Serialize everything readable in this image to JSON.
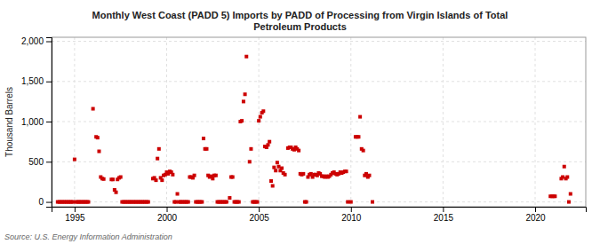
{
  "chart_data": {
    "type": "scatter",
    "title": "Monthly West Coast (PADD 5) Imports by PADD of Processing from Virgin Islands of Total\nPetroleum Products",
    "ylabel": "Thousand Barrels",
    "source": "Source: U.S. Energy Information Administration",
    "color": "#cc0000",
    "marker": "square",
    "grid": true,
    "xlim": [
      1993.75,
      2022.75
    ],
    "xticks": [
      1995,
      2000,
      2005,
      2010,
      2015,
      2020
    ],
    "ylim": [
      -60,
      2050
    ],
    "yticks": [
      0,
      500,
      {
        "value": 1000,
        "label": "1,000"
      },
      {
        "value": 1500,
        "label": "1,500"
      },
      {
        "value": 2000,
        "label": "2,000"
      }
    ],
    "x": [
      1994.08,
      1994.17,
      1994.25,
      1994.33,
      1994.42,
      1994.5,
      1994.58,
      1994.67,
      1994.75,
      1994.83,
      1994.92,
      1995.0,
      1995.08,
      1995.17,
      1995.25,
      1995.33,
      1995.42,
      1995.5,
      1995.58,
      1995.67,
      1995.75,
      1996.0,
      1996.17,
      1996.25,
      1996.33,
      1996.42,
      1996.5,
      1996.58,
      1997.0,
      1997.08,
      1997.17,
      1997.25,
      1997.33,
      1997.42,
      1997.5,
      1997.58,
      1997.67,
      1997.75,
      1997.83,
      1997.92,
      1998.0,
      1998.08,
      1998.17,
      1998.25,
      1998.33,
      1998.42,
      1998.5,
      1998.58,
      1998.67,
      1998.75,
      1998.83,
      1998.92,
      1999.0,
      1999.25,
      1999.33,
      1999.42,
      1999.5,
      1999.58,
      1999.67,
      1999.75,
      1999.83,
      1999.92,
      2000.0,
      2000.08,
      2000.17,
      2000.25,
      2000.33,
      2000.42,
      2000.5,
      2000.58,
      2000.67,
      2000.75,
      2000.83,
      2000.92,
      2001.0,
      2001.08,
      2001.17,
      2001.25,
      2001.33,
      2001.42,
      2001.5,
      2001.58,
      2001.67,
      2001.75,
      2001.83,
      2001.92,
      2002.0,
      2002.08,
      2002.17,
      2002.25,
      2002.33,
      2002.42,
      2002.5,
      2002.58,
      2002.67,
      2002.75,
      2002.83,
      2002.92,
      2003.0,
      2003.08,
      2003.17,
      2003.25,
      2003.42,
      2003.5,
      2003.58,
      2003.67,
      2003.75,
      2003.83,
      2003.92,
      2004.0,
      2004.08,
      2004.17,
      2004.25,
      2004.33,
      2004.5,
      2004.58,
      2004.67,
      2004.75,
      2004.83,
      2004.92,
      2005.0,
      2005.08,
      2005.17,
      2005.25,
      2005.33,
      2005.42,
      2005.5,
      2005.58,
      2005.67,
      2005.75,
      2005.83,
      2005.92,
      2006.0,
      2006.08,
      2006.17,
      2006.25,
      2006.33,
      2006.42,
      2006.58,
      2006.67,
      2006.75,
      2006.83,
      2006.92,
      2007.0,
      2007.08,
      2007.17,
      2007.25,
      2007.33,
      2007.42,
      2007.5,
      2007.58,
      2007.67,
      2007.75,
      2007.83,
      2007.92,
      2008.0,
      2008.08,
      2008.17,
      2008.25,
      2008.33,
      2008.42,
      2008.5,
      2008.58,
      2008.67,
      2008.75,
      2008.83,
      2008.92,
      2009.0,
      2009.08,
      2009.17,
      2009.25,
      2009.33,
      2009.42,
      2009.5,
      2009.58,
      2009.67,
      2009.75,
      2009.83,
      2010.0,
      2010.25,
      2010.33,
      2010.42,
      2010.5,
      2010.58,
      2010.67,
      2010.75,
      2010.83,
      2010.92,
      2011.0,
      2011.17,
      2020.83,
      2020.92,
      2021.0,
      2021.08,
      2021.42,
      2021.5,
      2021.58,
      2021.67,
      2021.75,
      2021.83,
      2021.92
    ],
    "values": [
      0,
      0,
      0,
      0,
      0,
      0,
      0,
      0,
      0,
      0,
      0,
      530,
      0,
      0,
      0,
      0,
      0,
      0,
      0,
      0,
      0,
      1160,
      810,
      800,
      630,
      310,
      290,
      285,
      280,
      280,
      150,
      120,
      280,
      300,
      310,
      0,
      0,
      0,
      0,
      0,
      0,
      0,
      0,
      0,
      0,
      0,
      0,
      0,
      0,
      0,
      0,
      0,
      0,
      290,
      300,
      270,
      540,
      660,
      300,
      270,
      330,
      340,
      370,
      350,
      380,
      370,
      340,
      0,
      0,
      100,
      0,
      0,
      0,
      0,
      0,
      0,
      0,
      310,
      310,
      300,
      330,
      0,
      0,
      0,
      0,
      0,
      790,
      660,
      660,
      330,
      310,
      320,
      290,
      330,
      330,
      0,
      0,
      0,
      0,
      0,
      0,
      0,
      50,
      310,
      310,
      0,
      0,
      0,
      0,
      1000,
      1010,
      1250,
      1340,
      1810,
      500,
      660,
      0,
      0,
      0,
      0,
      1010,
      1060,
      1110,
      1130,
      690,
      680,
      710,
      750,
      260,
      200,
      430,
      390,
      490,
      440,
      390,
      420,
      360,
      340,
      670,
      680,
      680,
      660,
      650,
      680,
      660,
      640,
      350,
      340,
      350,
      0,
      0,
      310,
      340,
      350,
      310,
      340,
      340,
      330,
      360,
      350,
      320,
      320,
      310,
      320,
      310,
      320,
      340,
      360,
      370,
      350,
      340,
      350,
      370,
      360,
      370,
      380,
      380,
      0,
      0,
      810,
      810,
      810,
      1060,
      660,
      640,
      330,
      350,
      310,
      330,
      0,
      70,
      70,
      70,
      70,
      290,
      310,
      440,
      290,
      310,
      0,
      100
    ]
  }
}
